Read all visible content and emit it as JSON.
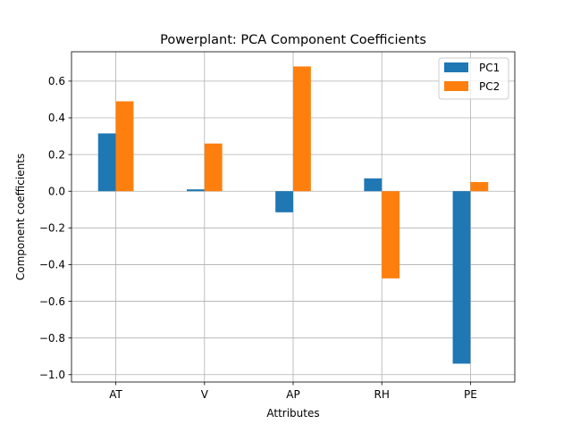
{
  "chart_data": {
    "type": "bar",
    "title": "Powerplant: PCA Component Coefficients",
    "xlabel": "Attributes",
    "ylabel": "Component coefficients",
    "categories": [
      "AT",
      "V",
      "AP",
      "RH",
      "PE"
    ],
    "series": [
      {
        "name": "PC1",
        "color": "#1f77b4",
        "values": [
          0.315,
          0.01,
          -0.115,
          0.07,
          -0.94
        ]
      },
      {
        "name": "PC2",
        "color": "#ff7f0e",
        "values": [
          0.49,
          0.26,
          0.68,
          -0.475,
          0.05
        ]
      }
    ],
    "ylim": [
      -1.04,
      0.76
    ],
    "yticks": [
      -1.0,
      -0.8,
      -0.6,
      -0.4,
      -0.2,
      0.0,
      0.2,
      0.4,
      0.6
    ],
    "ytick_labels": [
      "−1.0",
      "−0.8",
      "−0.6",
      "−0.4",
      "−0.2",
      "0.0",
      "0.2",
      "0.4",
      "0.6"
    ],
    "grid": true,
    "legend_position": "top-right"
  }
}
